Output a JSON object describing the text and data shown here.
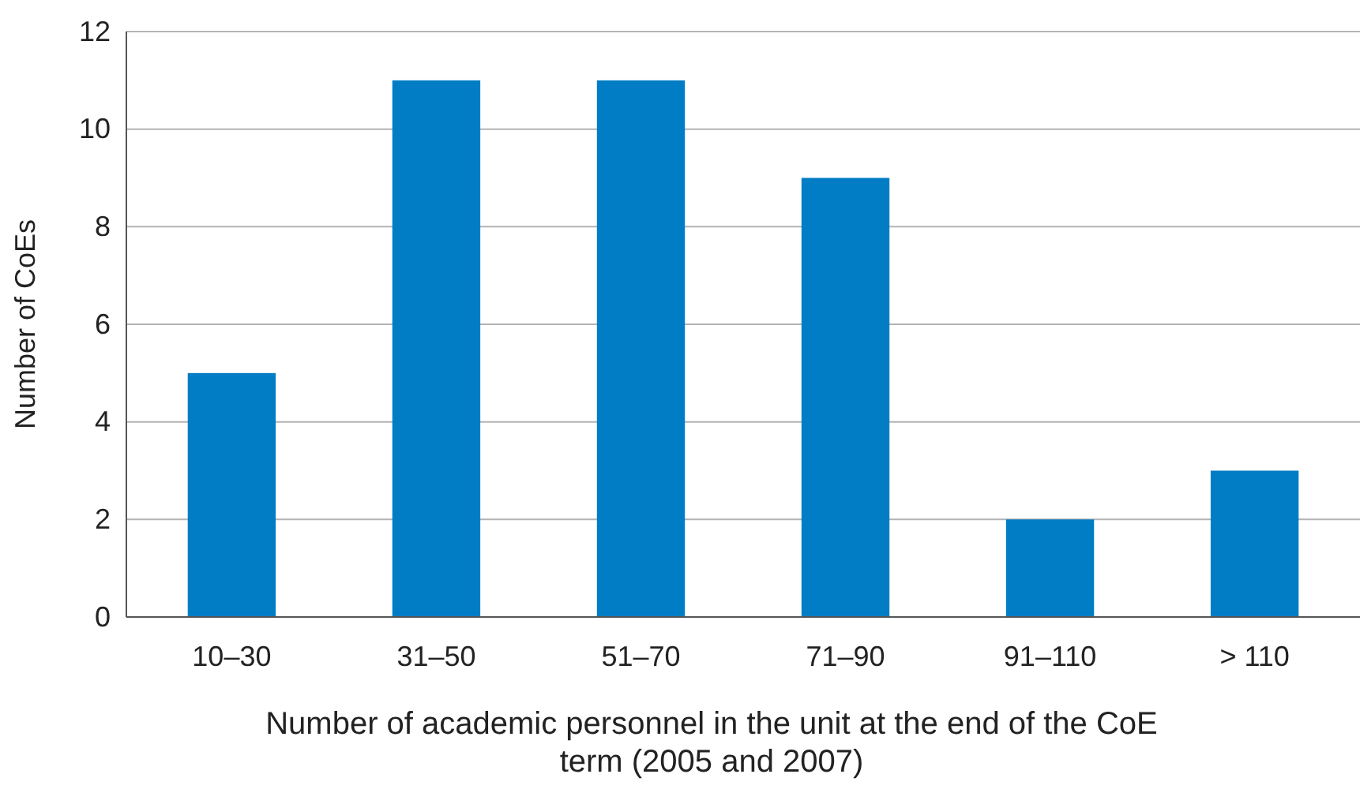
{
  "chart_data": {
    "type": "bar",
    "categories": [
      "10–30",
      "31–50",
      "51–70",
      "71–90",
      "91–110",
      "> 110"
    ],
    "values": [
      5,
      11,
      11,
      9,
      2,
      3
    ],
    "color": "#007dc5",
    "xlabel": "Number of academic personnel in the unit at the end of the CoE term (2005 and 2007)",
    "ylabel": "Number of CoEs",
    "ylim": [
      0,
      12
    ],
    "yticks": [
      0,
      2,
      4,
      6,
      8,
      10,
      12
    ],
    "grid": "y"
  }
}
